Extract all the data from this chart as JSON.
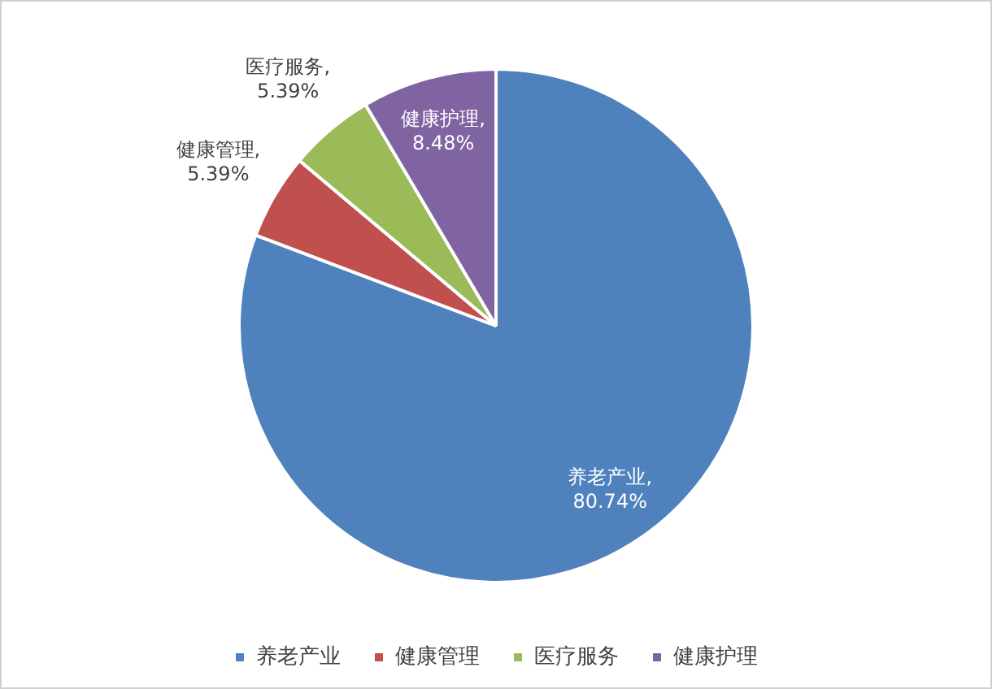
{
  "chart_data": {
    "type": "pie",
    "categories": [
      "养老产业",
      "健康管理",
      "医疗服务",
      "健康护理"
    ],
    "values": [
      80.74,
      5.39,
      5.39,
      8.48
    ],
    "colors": [
      "#4f81bd",
      "#c0504d",
      "#9bbb59",
      "#8064a2"
    ],
    "value_labels": [
      "养老产业, 80.74%",
      "健康管理, 5.39%",
      "医疗服务, 5.39%",
      "健康护理, 8.48%"
    ],
    "legend": "bottom"
  }
}
